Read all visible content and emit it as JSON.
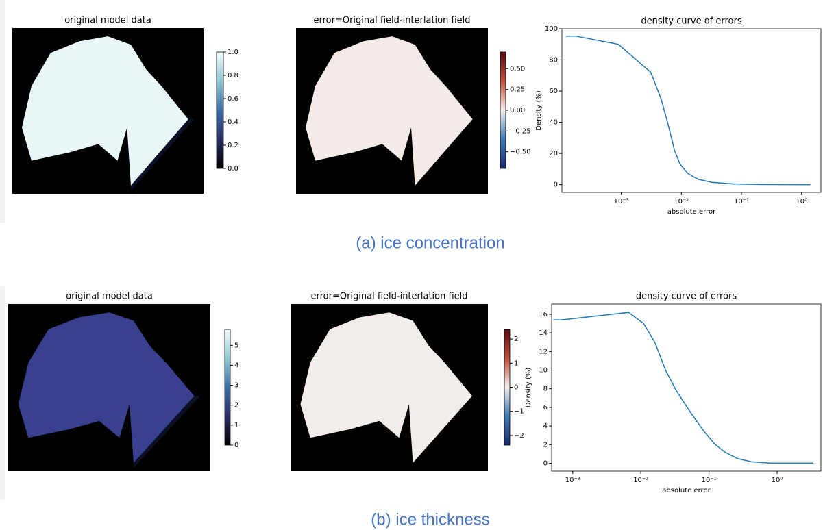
{
  "captions": [
    "(a)  ice concentration",
    "(b)  ice thickness"
  ],
  "chart_data": [
    {
      "type": "heatmap",
      "title": "original model data",
      "map_color": "#eaf7f8",
      "cmap": [
        "#000000",
        "#2b2c64",
        "#3a6ea5",
        "#8fc9d3",
        "#f5fdfd"
      ],
      "clim": [
        0,
        1
      ],
      "cticks": [
        {
          "value": 0,
          "label": "0.0"
        },
        0.2,
        0.4,
        0.6,
        0.8,
        {
          "value": 1,
          "label": "1.0"
        }
      ]
    },
    {
      "type": "heatmap",
      "title": "error=Original field-interlation field",
      "map_color": "#f3ebe8",
      "cmap": [
        "#1a2a6c",
        "#3b7ab6",
        "#f5f0ee",
        "#c0503a",
        "#5a0a14"
      ],
      "clim": [
        -0.7,
        0.7
      ],
      "cticks": [
        {
          "value": -0.5,
          "label": "−0.50"
        },
        {
          "value": -0.25,
          "label": "−0.25"
        },
        {
          "value": 0,
          "label": "0.00"
        },
        {
          "value": 0.25,
          "label": "0.25"
        },
        {
          "value": 0.5,
          "label": "0.50"
        }
      ]
    },
    {
      "type": "line",
      "title": "density curve of errors",
      "xlabel": "absolute error",
      "ylabel": "Density (%)",
      "xscale": "log",
      "xlim": [
        0.000103,
        2.1
      ],
      "ylim": [
        -5,
        100
      ],
      "color": "#1f77b4",
      "xticks": [
        {
          "value": 0.001,
          "label": "10⁻³"
        },
        {
          "value": 0.01,
          "label": "10⁻²"
        },
        {
          "value": 0.1,
          "label": "10⁻¹"
        },
        {
          "value": 1,
          "label": "10⁰"
        }
      ],
      "yticks": [
        0,
        20,
        40,
        60,
        80,
        100
      ],
      "x": [
        0.00012,
        0.000174,
        0.0009,
        0.0031,
        0.0046,
        0.0059,
        0.0077,
        0.0095,
        0.013,
        0.019,
        0.032,
        0.071,
        0.21,
        1.4
      ],
      "values": [
        95.3,
        95.3,
        90,
        72,
        55,
        40,
        22,
        13,
        7,
        3.5,
        1.5,
        0.5,
        0.1,
        0
      ]
    },
    {
      "type": "heatmap",
      "title": "original model data",
      "map_color": "#3a4090",
      "cmap": [
        "#000000",
        "#2b2c64",
        "#3a6ea5",
        "#8fc9d3",
        "#f5fdfd"
      ],
      "clim": [
        0,
        5.8
      ],
      "cticks": [
        0,
        1,
        2,
        3,
        4,
        5
      ]
    },
    {
      "type": "heatmap",
      "title": "error=Original field-interlation field",
      "map_color": "#f2ecea",
      "cmap": [
        "#1a2a6c",
        "#3b7ab6",
        "#f5f0ee",
        "#c0503a",
        "#5a0a14"
      ],
      "clim": [
        -2.4,
        2.4
      ],
      "cticks": [
        {
          "value": -2,
          "label": "−2"
        },
        {
          "value": -1,
          "label": "−1"
        },
        0,
        1,
        2
      ]
    },
    {
      "type": "line",
      "title": "density curve of errors",
      "xlabel": "absolute error",
      "ylabel": "Density (%)",
      "xscale": "log",
      "xlim": [
        0.00049,
        4.4
      ],
      "ylim": [
        -0.85,
        17.1
      ],
      "color": "#1f77b4",
      "xticks": [
        {
          "value": 0.001,
          "label": "10⁻³"
        },
        {
          "value": 0.01,
          "label": "10⁻²"
        },
        {
          "value": 0.1,
          "label": "10⁻¹"
        },
        {
          "value": 1,
          "label": "10⁰"
        }
      ],
      "yticks": [
        0,
        2,
        4,
        6,
        8,
        10,
        12,
        14,
        16
      ],
      "x": [
        0.00052,
        0.00069,
        0.0066,
        0.011,
        0.016,
        0.023,
        0.033,
        0.052,
        0.083,
        0.12,
        0.17,
        0.26,
        0.42,
        0.85,
        3.4
      ],
      "values": [
        15.4,
        15.4,
        16.2,
        15,
        13,
        10,
        7.8,
        5.6,
        3.5,
        2.1,
        1.2,
        0.5,
        0.15,
        0,
        0
      ]
    }
  ]
}
